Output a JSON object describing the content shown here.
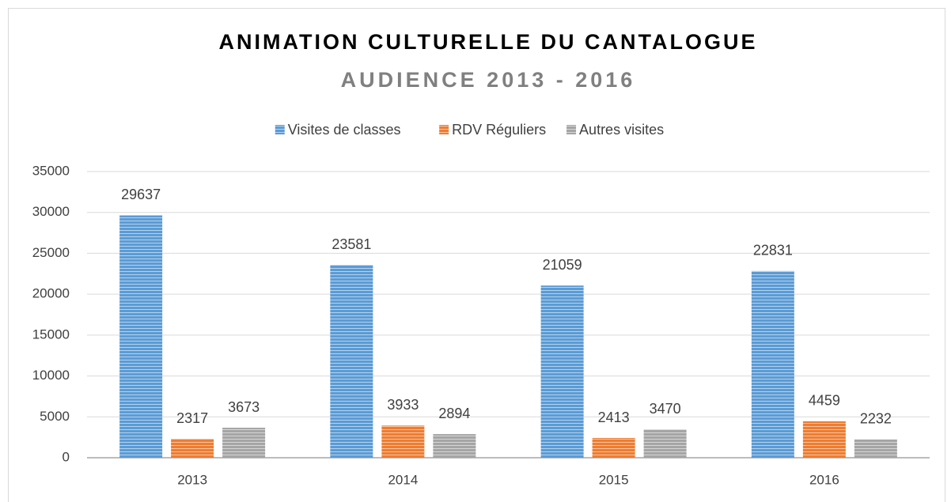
{
  "chart_data": {
    "type": "bar",
    "title": "ANIMATION CULTURELLE DU CANTALOGUE",
    "subtitle": "AUDIENCE 2013 - 2016",
    "categories": [
      "2013",
      "2014",
      "2015",
      "2016"
    ],
    "series": [
      {
        "name": "Visites de classes",
        "color": "#5b9bd5",
        "values": [
          29637,
          23581,
          21059,
          22831
        ]
      },
      {
        "name": "RDV Réguliers",
        "color": "#ed7d31",
        "values": [
          2317,
          3933,
          2413,
          4459
        ]
      },
      {
        "name": "Autres visites",
        "color": "#a5a5a5",
        "values": [
          3673,
          2894,
          3470,
          2232
        ]
      }
    ],
    "ylim": [
      0,
      35000
    ],
    "yticks": [
      0,
      5000,
      10000,
      15000,
      20000,
      25000,
      30000,
      35000
    ],
    "grid": true,
    "legend": "top"
  }
}
